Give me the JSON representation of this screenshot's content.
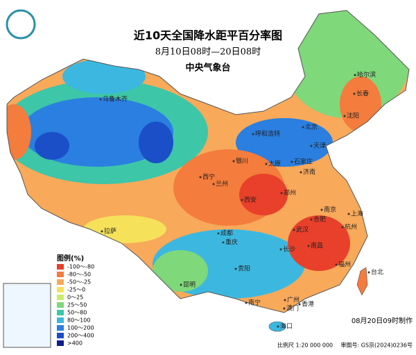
{
  "title": "近10天全国降水距平百分率图",
  "subtitle": "8月10日08时—20日08时",
  "issuer": "中央气象台",
  "legend": {
    "title": "图例(%)",
    "items": [
      {
        "label": "-100～-80",
        "color": "#e8402a"
      },
      {
        "label": "-80～-50",
        "color": "#f47c3c"
      },
      {
        "label": "-50～-25",
        "color": "#f8a95a"
      },
      {
        "label": "-25～0",
        "color": "#f6e15a"
      },
      {
        "label": "0～25",
        "color": "#c8ec6a"
      },
      {
        "label": "25～50",
        "color": "#7fd87a"
      },
      {
        "label": "50～80",
        "color": "#3dc6a8"
      },
      {
        "label": "80～100",
        "color": "#3cb8e0"
      },
      {
        "label": "100～200",
        "color": "#2a7fe0"
      },
      {
        "label": "200～400",
        "color": "#1a4fc8"
      },
      {
        "label": ">400",
        "color": "#0a1e8c"
      }
    ]
  },
  "cities": [
    "乌鲁木齐",
    "哈尔滨",
    "长春",
    "沈阳",
    "呼和浩特",
    "北京",
    "天津",
    "石家庄",
    "太原",
    "济南",
    "银川",
    "西宁",
    "兰州",
    "西安",
    "郑州",
    "南京",
    "合肥",
    "上海",
    "杭州",
    "武汉",
    "成都",
    "重庆",
    "长沙",
    "南昌",
    "福州",
    "台北",
    "贵阳",
    "昆明",
    "南宁",
    "广州",
    "香港",
    "澳门",
    "海口",
    "拉萨"
  ],
  "footer": {
    "made": "08月20日09时制作",
    "scale": "比例尺 1:20 000 000",
    "approval": "审图号: GS京(2024)0236号"
  }
}
